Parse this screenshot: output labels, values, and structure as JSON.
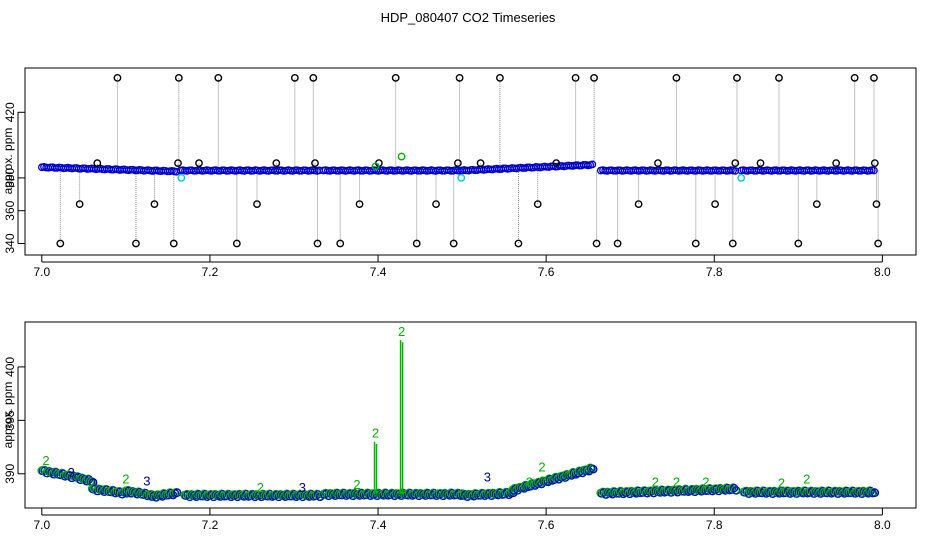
{
  "chart_data": [
    {
      "type": "scatter",
      "title": "HDP_080407  CO2 Timeseries",
      "ylabel": "approx. ppm",
      "xlabel": "",
      "xlim": [
        6.98,
        8.04
      ],
      "ylim": [
        333,
        447
      ],
      "x_ticks": [
        "7.0",
        "7.2",
        "7.4",
        "7.6",
        "7.8",
        "8.0"
      ],
      "y_ticks": [
        "340",
        "360",
        "380",
        "420"
      ],
      "colors": {
        "black": "#000000",
        "blue": "#0000cc",
        "green": "#00b400",
        "cyan": "#00d0d0",
        "segment": "#8a8a8a"
      },
      "base_segments": [
        {
          "x": [
            7.0,
            7.16
          ],
          "y": [
            386.5,
            384.0
          ]
        },
        {
          "x": [
            7.165,
            7.33
          ],
          "y": [
            384.5,
            384.5
          ]
        },
        {
          "x": [
            7.335,
            7.5
          ],
          "y": [
            384.5,
            384.5
          ]
        },
        {
          "x": [
            7.5,
            7.655
          ],
          "y": [
            384.5,
            388.0
          ]
        },
        {
          "x": [
            7.665,
            7.825
          ],
          "y": [
            384.5,
            384.5
          ]
        },
        {
          "x": [
            7.832,
            7.99
          ],
          "y": [
            384.5,
            384.5
          ]
        }
      ],
      "outliers_black": [
        {
          "x": 7.022,
          "y": 340
        },
        {
          "x": 7.045,
          "y": 364
        },
        {
          "x": 7.066,
          "y": 389
        },
        {
          "x": 7.09,
          "y": 441
        },
        {
          "x": 7.112,
          "y": 340
        },
        {
          "x": 7.134,
          "y": 364
        },
        {
          "x": 7.157,
          "y": 340
        },
        {
          "x": 7.162,
          "y": 389
        },
        {
          "x": 7.163,
          "y": 441
        },
        {
          "x": 7.187,
          "y": 389
        },
        {
          "x": 7.21,
          "y": 441
        },
        {
          "x": 7.232,
          "y": 340
        },
        {
          "x": 7.256,
          "y": 364
        },
        {
          "x": 7.279,
          "y": 389
        },
        {
          "x": 7.301,
          "y": 441
        },
        {
          "x": 7.323,
          "y": 441
        },
        {
          "x": 7.325,
          "y": 389
        },
        {
          "x": 7.328,
          "y": 340
        },
        {
          "x": 7.355,
          "y": 340
        },
        {
          "x": 7.378,
          "y": 364
        },
        {
          "x": 7.401,
          "y": 389
        },
        {
          "x": 7.421,
          "y": 441
        },
        {
          "x": 7.446,
          "y": 340
        },
        {
          "x": 7.469,
          "y": 364
        },
        {
          "x": 7.49,
          "y": 340
        },
        {
          "x": 7.495,
          "y": 389
        },
        {
          "x": 7.497,
          "y": 441
        },
        {
          "x": 7.522,
          "y": 389
        },
        {
          "x": 7.545,
          "y": 441
        },
        {
          "x": 7.567,
          "y": 340
        },
        {
          "x": 7.59,
          "y": 364
        },
        {
          "x": 7.612,
          "y": 389
        },
        {
          "x": 7.635,
          "y": 441
        },
        {
          "x": 7.657,
          "y": 441
        },
        {
          "x": 7.66,
          "y": 340
        },
        {
          "x": 7.685,
          "y": 340
        },
        {
          "x": 7.71,
          "y": 364
        },
        {
          "x": 7.733,
          "y": 389
        },
        {
          "x": 7.755,
          "y": 441
        },
        {
          "x": 7.778,
          "y": 340
        },
        {
          "x": 7.801,
          "y": 364
        },
        {
          "x": 7.822,
          "y": 340
        },
        {
          "x": 7.825,
          "y": 389
        },
        {
          "x": 7.827,
          "y": 441
        },
        {
          "x": 7.855,
          "y": 389
        },
        {
          "x": 7.877,
          "y": 441
        },
        {
          "x": 7.9,
          "y": 340
        },
        {
          "x": 7.922,
          "y": 364
        },
        {
          "x": 7.945,
          "y": 389
        },
        {
          "x": 7.967,
          "y": 441
        },
        {
          "x": 7.99,
          "y": 441
        },
        {
          "x": 7.991,
          "y": 389
        },
        {
          "x": 7.993,
          "y": 364
        },
        {
          "x": 7.995,
          "y": 340
        }
      ],
      "outliers_green": [
        {
          "x": 7.397,
          "y": 387
        },
        {
          "x": 7.428,
          "y": 393
        }
      ],
      "outliers_cyan": [
        {
          "x": 7.166,
          "y": 380
        },
        {
          "x": 7.499,
          "y": 380
        },
        {
          "x": 7.832,
          "y": 380
        }
      ]
    },
    {
      "type": "scatter",
      "title": "",
      "ylabel": "approx. ppm",
      "xlabel": "",
      "xlim": [
        6.98,
        8.04
      ],
      "ylim": [
        386.8,
        404.2
      ],
      "x_ticks": [
        "7.0",
        "7.2",
        "7.4",
        "7.6",
        "7.8",
        "8.0"
      ],
      "y_ticks": [
        "390",
        "395",
        "400"
      ],
      "colors": {
        "blue": "#0000cc",
        "green": "#00b400",
        "navy": "#000088"
      },
      "segments": [
        {
          "x": [
            7.0,
            7.04
          ],
          "y": [
            390.3,
            389.7
          ]
        },
        {
          "x": [
            7.04,
            7.06
          ],
          "y": [
            389.7,
            389.3
          ]
        },
        {
          "x": [
            7.06,
            7.1
          ],
          "y": [
            388.6,
            388.2
          ]
        },
        {
          "x": [
            7.1,
            7.13
          ],
          "y": [
            388.4,
            388.0
          ]
        },
        {
          "x": [
            7.13,
            7.16
          ],
          "y": [
            387.9,
            388.2
          ]
        },
        {
          "x": [
            7.17,
            7.33
          ],
          "y": [
            388.0,
            388.0
          ]
        },
        {
          "x": [
            7.335,
            7.5
          ],
          "y": [
            388.1,
            388.1
          ]
        },
        {
          "x": [
            7.5,
            7.56
          ],
          "y": [
            388.0,
            388.2
          ]
        },
        {
          "x": [
            7.56,
            7.655
          ],
          "y": [
            388.5,
            390.5
          ]
        },
        {
          "x": [
            7.665,
            7.825
          ],
          "y": [
            388.2,
            388.6
          ]
        },
        {
          "x": [
            7.835,
            7.99
          ],
          "y": [
            388.3,
            388.3
          ]
        }
      ],
      "spikes": [
        {
          "x": 7.397,
          "y": 393.0,
          "label": "2"
        },
        {
          "x": 7.428,
          "y": 402.5,
          "label": "2"
        }
      ],
      "labels_green": [
        {
          "x": 7.005,
          "y": 390.8,
          "label": "2"
        },
        {
          "x": 7.1,
          "y": 389.1,
          "label": "2"
        },
        {
          "x": 7.26,
          "y": 388.3,
          "label": "2"
        },
        {
          "x": 7.375,
          "y": 388.6,
          "label": "2"
        },
        {
          "x": 7.58,
          "y": 388.8,
          "label": "2"
        },
        {
          "x": 7.595,
          "y": 390.2,
          "label": "2"
        },
        {
          "x": 7.73,
          "y": 388.8,
          "label": "2"
        },
        {
          "x": 7.755,
          "y": 388.8,
          "label": "2"
        },
        {
          "x": 7.79,
          "y": 388.8,
          "label": "2"
        },
        {
          "x": 7.88,
          "y": 388.7,
          "label": "2"
        },
        {
          "x": 7.91,
          "y": 389.1,
          "label": "2"
        }
      ],
      "labels_navy": [
        {
          "x": 7.035,
          "y": 389.7,
          "label": "3"
        },
        {
          "x": 7.125,
          "y": 388.9,
          "label": "3"
        },
        {
          "x": 7.31,
          "y": 388.3,
          "label": "3"
        },
        {
          "x": 7.53,
          "y": 389.3,
          "label": "3"
        }
      ]
    }
  ]
}
